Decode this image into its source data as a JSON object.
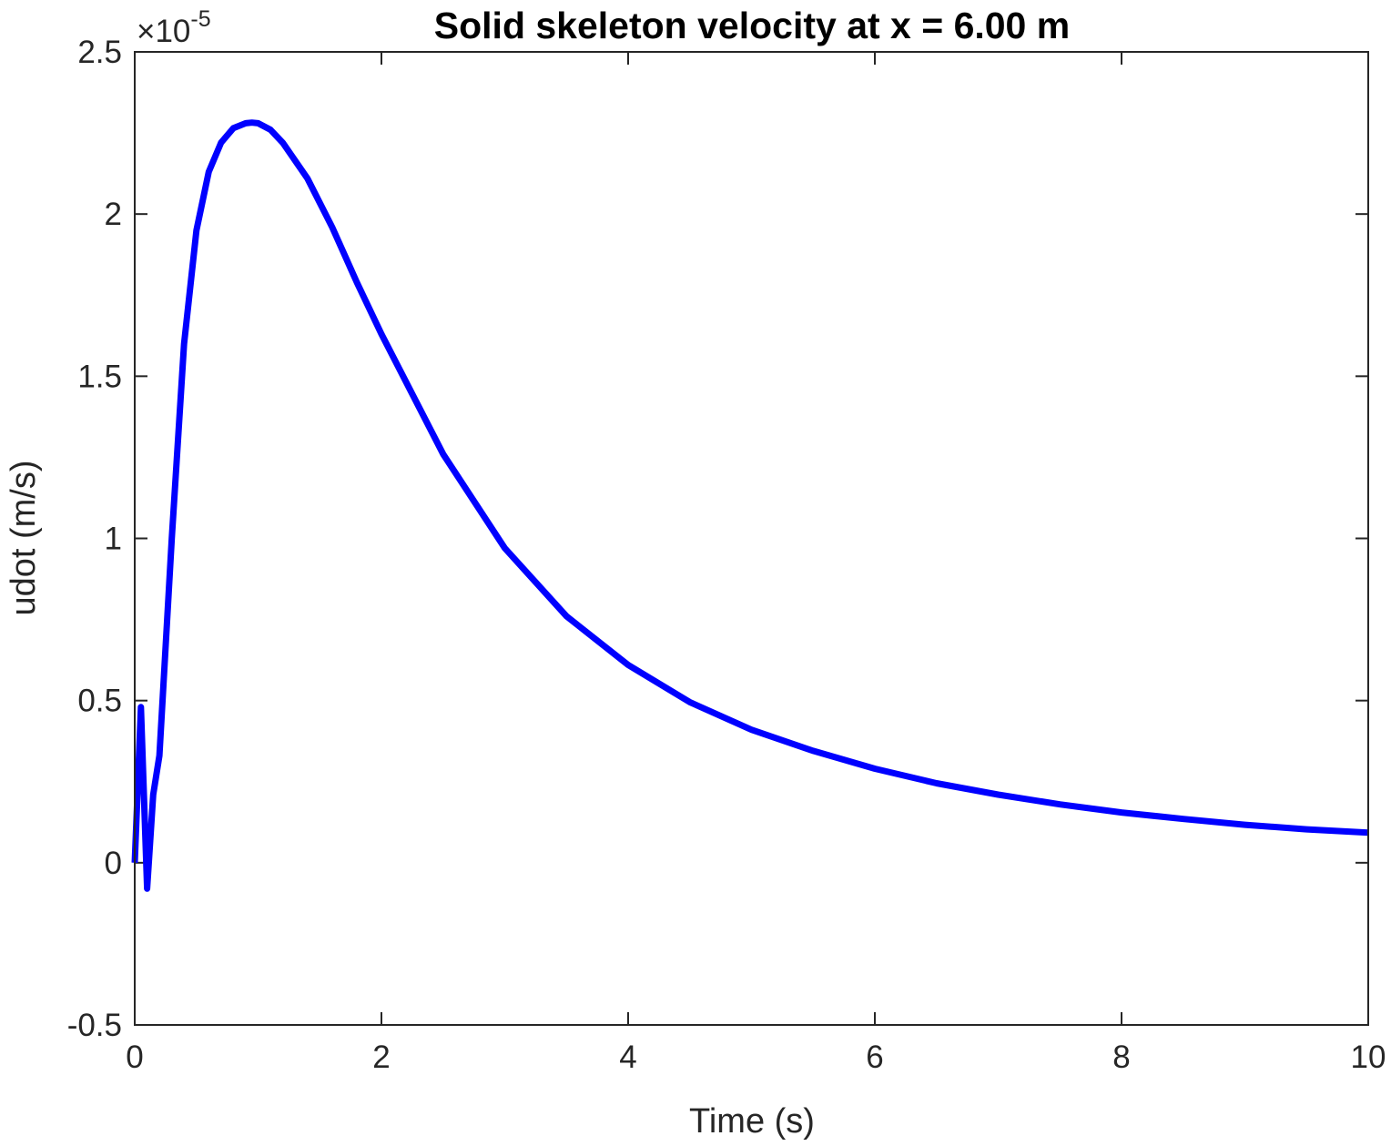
{
  "chart_data": {
    "type": "line",
    "title": "Solid skeleton velocity at x = 6.00 m",
    "xlabel": "Time (s)",
    "ylabel": "udot (m/s)",
    "xlim": [
      0,
      10
    ],
    "ylim": [
      -5e-06,
      2.5e-05
    ],
    "y_exponent_label": "×10",
    "y_exponent_power": "-5",
    "x_ticks": [
      0,
      2,
      4,
      6,
      8,
      10
    ],
    "x_tick_labels": [
      "0",
      "2",
      "4",
      "6",
      "8",
      "10"
    ],
    "y_ticks": [
      -0.5,
      0,
      0.5,
      1,
      1.5,
      2,
      2.5
    ],
    "y_tick_labels": [
      "-0.5",
      "0",
      "0.5",
      "1",
      "1.5",
      "2",
      "2.5"
    ],
    "y_tick_scale": 1e-05,
    "grid": false,
    "series": [
      {
        "color": "#0000ff",
        "x": [
          0,
          0.05,
          0.1,
          0.15,
          0.2,
          0.3,
          0.4,
          0.5,
          0.6,
          0.7,
          0.8,
          0.9,
          0.95,
          1.0,
          1.1,
          1.2,
          1.4,
          1.6,
          1.8,
          2.0,
          2.5,
          3.0,
          3.5,
          4.0,
          4.5,
          5.0,
          5.5,
          6.0,
          6.5,
          7.0,
          7.5,
          8.0,
          8.5,
          9.0,
          9.5,
          10.0
        ],
        "y": [
          0.0,
          4.8e-06,
          -8e-07,
          2.1e-06,
          3.3e-06,
          1e-05,
          1.6e-05,
          1.95e-05,
          2.13e-05,
          2.22e-05,
          2.265e-05,
          2.28e-05,
          2.282e-05,
          2.28e-05,
          2.26e-05,
          2.22e-05,
          2.11e-05,
          1.96e-05,
          1.79e-05,
          1.63e-05,
          1.26e-05,
          9.7e-06,
          7.6e-06,
          6.1e-06,
          4.95e-06,
          4.1e-06,
          3.45e-06,
          2.9e-06,
          2.45e-06,
          2.1e-06,
          1.8e-06,
          1.55e-06,
          1.35e-06,
          1.17e-06,
          1.03e-06,
          9.3e-07
        ]
      }
    ]
  }
}
